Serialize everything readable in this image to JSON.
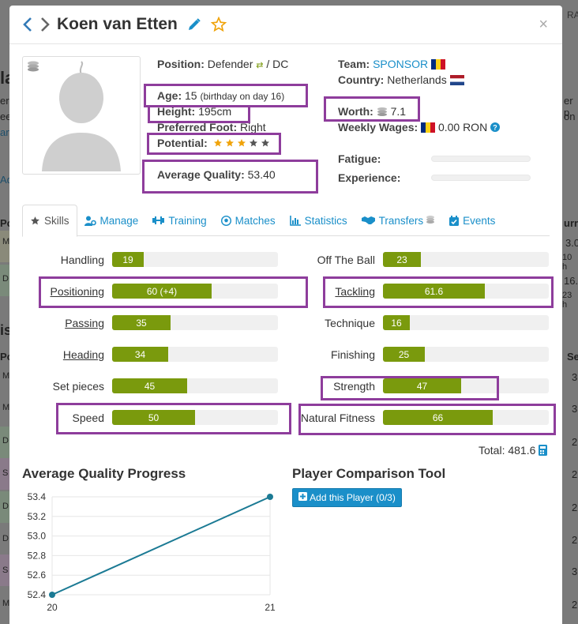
{
  "background": {
    "snippets": [
      "RA",
      "la",
      "ere",
      "ee",
      "art",
      "Ad",
      "Po",
      "M",
      "D",
      "is",
      "Po",
      "M",
      "M",
      "D",
      "S",
      "D",
      "D",
      "S",
      "M"
    ],
    "right_snippets": [
      "er p",
      "on",
      "urr",
      "3.0",
      "10 h",
      "16.",
      "23 h",
      "Se",
      "3",
      "3",
      "2",
      "2",
      "2",
      "2",
      "3",
      "2"
    ]
  },
  "header": {
    "prev_icon": "chevron-left-icon",
    "next_icon": "chevron-right-icon",
    "player_name": "Koen van Etten",
    "edit_icon": "pencil-icon",
    "favorite_icon": "star-outline-icon",
    "close_label": "×"
  },
  "profile": {
    "position_label": "Position:",
    "position_value": "Defender",
    "position_sep": "/ DC",
    "age_label": "Age:",
    "age_value": "15",
    "age_note": "(birthday on day 16)",
    "height_label": "Height:",
    "height_value": "195cm",
    "foot_label": "Preferred Foot:",
    "foot_value": "Right",
    "potential_label": "Potential:",
    "potential_stars": 3,
    "potential_max": 5,
    "avg_quality_label": "Average Quality:",
    "avg_quality_value": "53.40",
    "team_label": "Team:",
    "team_value": "SPONSOR",
    "country_label": "Country:",
    "country_value": "Netherlands",
    "worth_label": "Worth:",
    "worth_value": "7.1",
    "wages_label": "Weekly Wages:",
    "wages_value": "0.00 RON",
    "fatigue_label": "Fatigue:",
    "fatigue_level": 0,
    "experience_label": "Experience:",
    "experience_level": 0
  },
  "tabs": [
    {
      "label": "Skills",
      "icon": "star-icon",
      "active": true
    },
    {
      "label": "Manage",
      "icon": "user-gear-icon",
      "active": false
    },
    {
      "label": "Training",
      "icon": "dumbbell-icon",
      "active": false
    },
    {
      "label": "Matches",
      "icon": "football-icon",
      "active": false
    },
    {
      "label": "Statistics",
      "icon": "bar-chart-icon",
      "active": false
    },
    {
      "label": "Transfers",
      "icon": "handshake-icon",
      "active": false
    },
    {
      "label": "Events",
      "icon": "calendar-check-icon",
      "active": false
    }
  ],
  "skills_left": [
    {
      "name": "Handling",
      "value": 19,
      "display": "19",
      "link": false
    },
    {
      "name": "Positioning",
      "value": 60,
      "display": "60 (+4)",
      "link": true
    },
    {
      "name": "Passing",
      "value": 35,
      "display": "35",
      "link": true
    },
    {
      "name": "Heading",
      "value": 34,
      "display": "34",
      "link": true
    },
    {
      "name": "Set pieces",
      "value": 45,
      "display": "45",
      "link": false
    },
    {
      "name": "Speed",
      "value": 50,
      "display": "50",
      "link": false
    }
  ],
  "skills_right": [
    {
      "name": "Off The Ball",
      "value": 23,
      "display": "23",
      "link": false
    },
    {
      "name": "Tackling",
      "value": 61.6,
      "display": "61.6",
      "link": true
    },
    {
      "name": "Technique",
      "value": 16,
      "display": "16",
      "link": false
    },
    {
      "name": "Finishing",
      "value": 25,
      "display": "25",
      "link": false
    },
    {
      "name": "Strength",
      "value": 47,
      "display": "47",
      "link": false
    },
    {
      "name": "Natural Fitness",
      "value": 66,
      "display": "66",
      "link": false
    }
  ],
  "total_label": "Total: 481.6",
  "quality_section_title": "Average Quality Progress",
  "comparison_section_title": "Player Comparison Tool",
  "add_player_label": "Add this Player (0/3)",
  "colors": {
    "accent": "#1a8fc9",
    "skill_bar": "#7a9a0d",
    "highlight": "#8e3d9c",
    "line": "#1b7a94",
    "star": "#f0a30a"
  },
  "chart_data": {
    "type": "line",
    "x": [
      20,
      21
    ],
    "series": [
      {
        "values": [
          52.4,
          53.4
        ]
      }
    ],
    "xticks": [
      "20",
      "21"
    ],
    "yticks": [
      "53.4",
      "53.2",
      "53.0",
      "52.8",
      "52.6",
      "52.4"
    ],
    "ylim": [
      52.4,
      53.4
    ],
    "xlim": [
      20,
      21
    ],
    "grid": true,
    "title": "",
    "xlabel": "",
    "ylabel": ""
  }
}
